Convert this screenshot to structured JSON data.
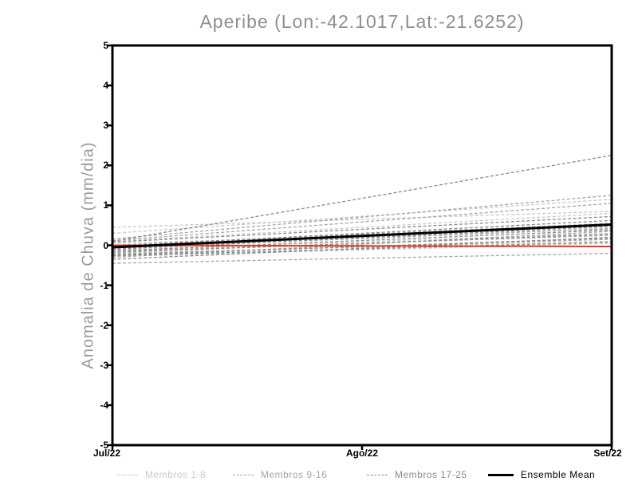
{
  "page": {
    "background": "#ffffff"
  },
  "chart_data": {
    "type": "line",
    "title": "Aperibe (Lon:-42.1017,Lat:-21.6252)",
    "ylabel": "Anomalia de Chuva (mm/dia)",
    "xlabel": "",
    "x_ticks": [
      "Jul/22",
      "Ago/22",
      "Set/22"
    ],
    "y_ticks": [
      5,
      4,
      3,
      2,
      1,
      0,
      -1,
      -2,
      -3,
      -4,
      -5
    ],
    "ylim": [
      -5,
      5
    ],
    "xlim_labels": [
      "Jul/22",
      "Set/22"
    ],
    "grid": false,
    "legend_position": "bottom",
    "title_color": "#8f8f8f",
    "axis_color": "#000000",
    "line_style_members": "dashed",
    "groups": [
      {
        "label": "Membros 1-8",
        "color": "#c9c9c9"
      },
      {
        "label": "Membros 9-16",
        "color": "#a6a6a6"
      },
      {
        "label": "Membros 17-25",
        "color": "#8a8a8a"
      }
    ],
    "members": [
      {
        "group": 0,
        "start": 0.45,
        "end": 0.85
      },
      {
        "group": 0,
        "start": 0.3,
        "end": 1.15
      },
      {
        "group": 0,
        "start": 0.1,
        "end": 0.8
      },
      {
        "group": 0,
        "start": -0.05,
        "end": 0.45
      },
      {
        "group": 0,
        "start": -0.12,
        "end": 0.3
      },
      {
        "group": 0,
        "start": -0.2,
        "end": 0.1
      },
      {
        "group": 0,
        "start": -0.28,
        "end": 0.05
      },
      {
        "group": 0,
        "start": 0.05,
        "end": 0.4
      },
      {
        "group": 1,
        "start": 0.16,
        "end": 1.25
      },
      {
        "group": 1,
        "start": 0.12,
        "end": 1.05
      },
      {
        "group": 1,
        "start": 0.0,
        "end": 0.55
      },
      {
        "group": 1,
        "start": -0.08,
        "end": 0.42
      },
      {
        "group": 1,
        "start": -0.15,
        "end": 0.25
      },
      {
        "group": 1,
        "start": -0.22,
        "end": 0.15
      },
      {
        "group": 1,
        "start": -0.3,
        "end": 0.35
      },
      {
        "group": 1,
        "start": -0.45,
        "end": -0.2
      },
      {
        "group": 2,
        "start": 0.1,
        "end": 2.25
      },
      {
        "group": 2,
        "start": 0.08,
        "end": 0.72
      },
      {
        "group": 2,
        "start": -0.02,
        "end": 0.62
      },
      {
        "group": 2,
        "start": -0.1,
        "end": 0.48
      },
      {
        "group": 2,
        "start": -0.14,
        "end": 0.38
      },
      {
        "group": 2,
        "start": -0.18,
        "end": 0.28
      },
      {
        "group": 2,
        "start": -0.24,
        "end": 0.18
      },
      {
        "group": 2,
        "start": -0.26,
        "end": 0.08
      },
      {
        "group": 2,
        "start": -0.35,
        "end": 0.2
      }
    ],
    "ensemble_mean": {
      "label": "Ensemble Mean",
      "color": "#000000",
      "start": -0.05,
      "end": 0.52
    },
    "zero_reference": {
      "color": "#e0392e",
      "start": 0.0,
      "end": -0.03
    }
  }
}
